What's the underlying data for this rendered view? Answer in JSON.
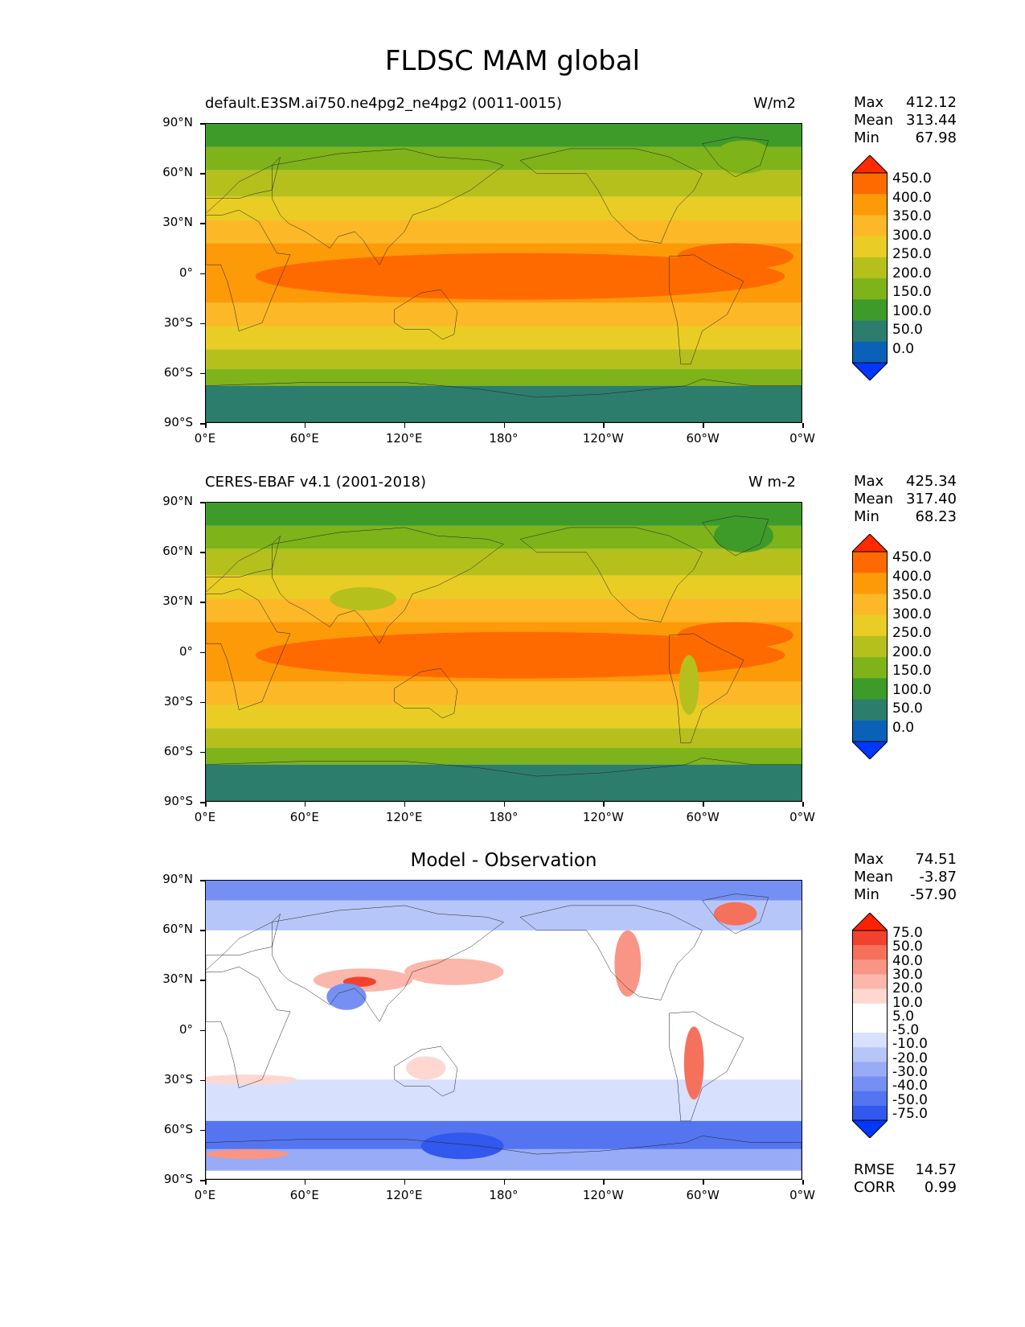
{
  "title": "FLDSC MAM global",
  "axes": {
    "lat_ticks": [
      "90°N",
      "60°N",
      "30°N",
      "0°",
      "30°S",
      "60°S",
      "90°S"
    ],
    "lon_ticks": [
      "0°E",
      "60°E",
      "120°E",
      "180°",
      "120°W",
      "60°W",
      "0°W"
    ]
  },
  "panels": [
    {
      "title_left": "default.E3SM.ai750.ne4pg2_ne4pg2 (0011-0015)",
      "title_right": "W/m2",
      "stats": [
        {
          "label": "Max",
          "value": "412.12"
        },
        {
          "label": "Mean",
          "value": "313.44"
        },
        {
          "label": "Min",
          "value": "67.98"
        }
      ],
      "colorbar_labels": [
        "450.0",
        "400.0",
        "350.0",
        "300.0",
        "250.0",
        "200.0",
        "150.0",
        "100.0",
        "50.0",
        "0.0"
      ]
    },
    {
      "title_left": "CERES-EBAF v4.1 (2001-2018)",
      "title_right": "W m-2",
      "stats": [
        {
          "label": "Max",
          "value": "425.34"
        },
        {
          "label": "Mean",
          "value": "317.40"
        },
        {
          "label": "Min",
          "value": "68.23"
        }
      ],
      "colorbar_labels": [
        "450.0",
        "400.0",
        "350.0",
        "300.0",
        "250.0",
        "200.0",
        "150.0",
        "100.0",
        "50.0",
        "0.0"
      ]
    },
    {
      "title_center": "Model - Observation",
      "stats": [
        {
          "label": "Max",
          "value": "74.51"
        },
        {
          "label": "Mean",
          "value": "-3.87"
        },
        {
          "label": "Min",
          "value": "-57.90"
        }
      ],
      "colorbar_labels": [
        "75.0",
        "50.0",
        "40.0",
        "30.0",
        "20.0",
        "10.0",
        "5.0",
        "-5.0",
        "-10.0",
        "-20.0",
        "-30.0",
        "-40.0",
        "-50.0",
        "-75.0"
      ],
      "metrics": [
        {
          "label": "RMSE",
          "value": "14.57"
        },
        {
          "label": "CORR",
          "value": "0.99"
        }
      ]
    }
  ],
  "colors": {
    "field_scale": [
      "#ff2a00",
      "#ff6a00",
      "#fd9a08",
      "#fdb827",
      "#e9cd24",
      "#b5c01d",
      "#7eb31a",
      "#3e9b2a",
      "#2d7d6c",
      "#0b61b8",
      "#0037ff"
    ],
    "diff_scale": [
      "#ff2200",
      "#f2422e",
      "#f6715c",
      "#f99585",
      "#fbb7ab",
      "#fdd7d0",
      "#ffffff",
      "#ffffff",
      "#d7e0fd",
      "#b7c6f9",
      "#97abf6",
      "#7590f2",
      "#5574f0",
      "#3258ee",
      "#0037ff"
    ]
  }
}
